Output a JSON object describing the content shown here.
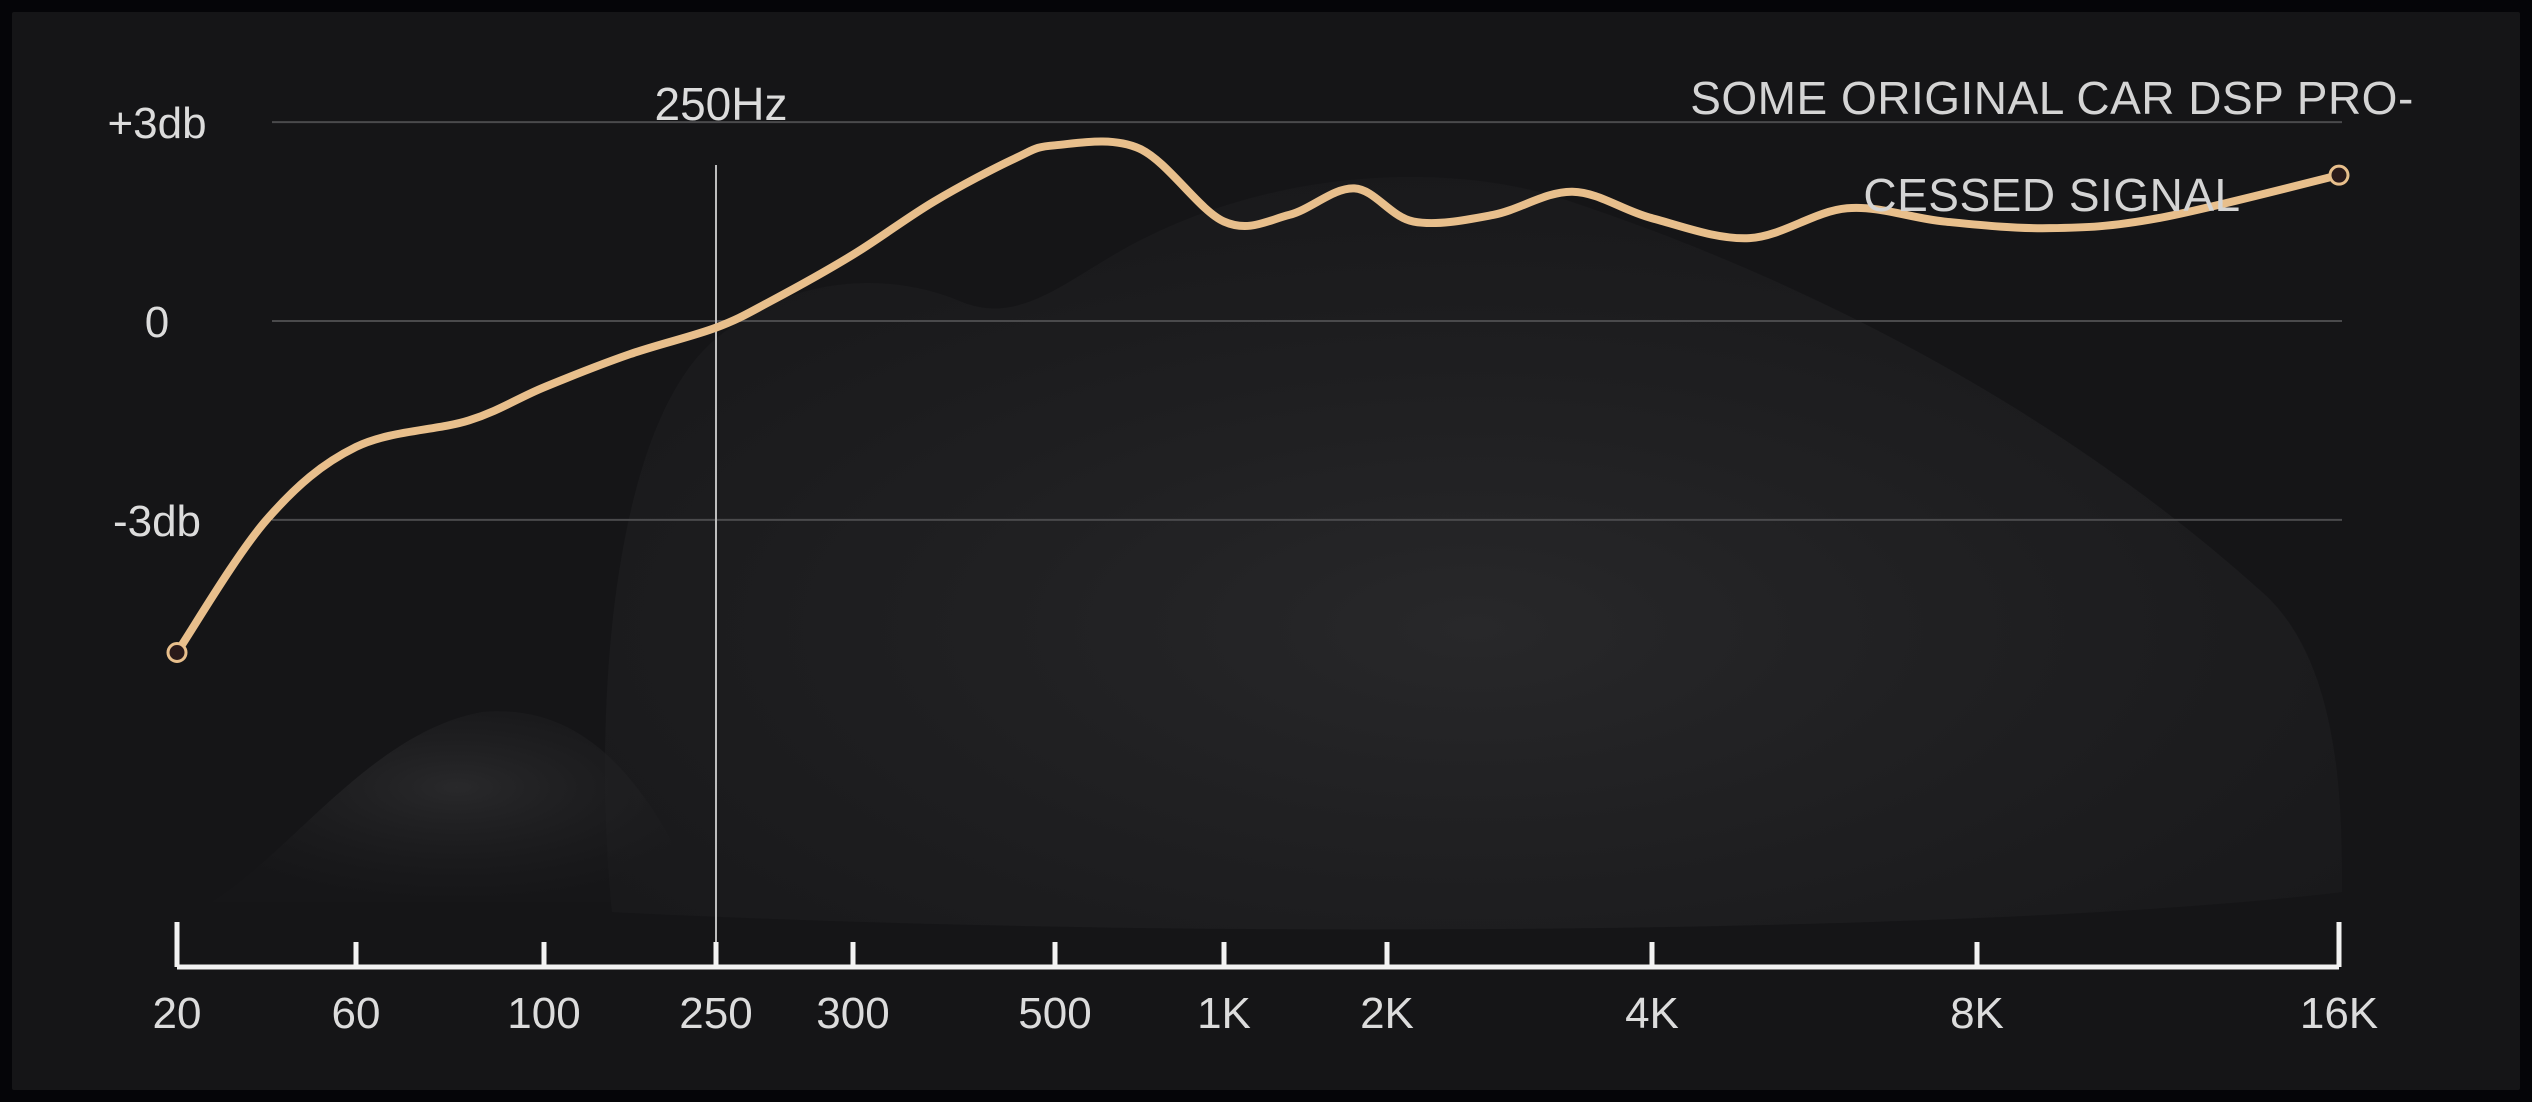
{
  "chart_data": {
    "type": "line",
    "title_lines": [
      "SOME ORIGINAL CAR DSP PRO-",
      "CESSED SIGNAL"
    ],
    "x_tick_labels": [
      "20",
      "60",
      "100",
      "250",
      "300",
      "500",
      "1K",
      "2K",
      "4K",
      "8K",
      "16K"
    ],
    "y_tick_labels": [
      "+3db",
      "0",
      "-3db"
    ],
    "y_ticks": [
      3,
      0,
      -3
    ],
    "ylim": [
      -7.3,
      5.5
    ],
    "marker_label": "250Hz",
    "marker_tick_index": 3,
    "series": [
      {
        "color": "#e8bf8c",
        "x_tick_pos": [
          0,
          0.5,
          1,
          1.6,
          2,
          2.5,
          3,
          3.4,
          4,
          4.4,
          4.8,
          5,
          5.5,
          6,
          6.4,
          6.8,
          7.1,
          7.4,
          7.7,
          8,
          8.3,
          8.6,
          8.9,
          9.2,
          9.5,
          10
        ],
        "values": [
          -5.0,
          -3.0,
          -1.9,
          -1.5,
          -1.0,
          -0.5,
          -0.1,
          0.3,
          1.0,
          1.8,
          2.45,
          2.65,
          2.6,
          1.5,
          1.6,
          2.0,
          1.5,
          1.6,
          1.95,
          1.55,
          1.25,
          1.7,
          1.5,
          1.4,
          1.55,
          2.2
        ]
      }
    ],
    "grid": true
  },
  "colors": {
    "background": "#151517",
    "grid": "#4a4a4c",
    "axis": "#f2f2f2",
    "curve": "#e8bf8c"
  }
}
